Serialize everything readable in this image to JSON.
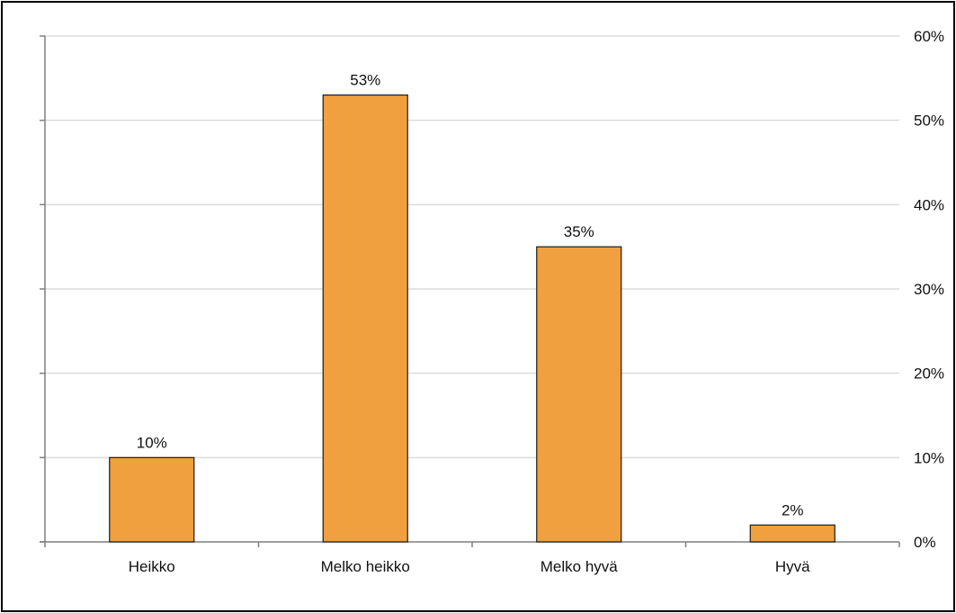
{
  "chart_data": {
    "type": "bar",
    "categories": [
      "Heikko",
      "Melko heikko",
      "Melko hyvä",
      "Hyvä"
    ],
    "values": [
      10,
      53,
      35,
      2
    ],
    "data_labels": [
      "10%",
      "53%",
      "35%",
      "2%"
    ],
    "ylim": [
      0,
      60
    ],
    "y_ticks": [
      0,
      10,
      20,
      30,
      40,
      50,
      60
    ],
    "y_tick_labels": [
      "0%",
      "10%",
      "20%",
      "30%",
      "40%",
      "50%",
      "60%"
    ],
    "y_axis_side": "right",
    "grid": true,
    "legend": "none",
    "title": "",
    "xlabel": "",
    "ylabel": "",
    "colors": {
      "bar": "#f0a03f",
      "bar_outline": "#1a1a1a",
      "grid": "#dcdcdc",
      "axis": "#7f7f7f",
      "frame": "#000000"
    }
  }
}
